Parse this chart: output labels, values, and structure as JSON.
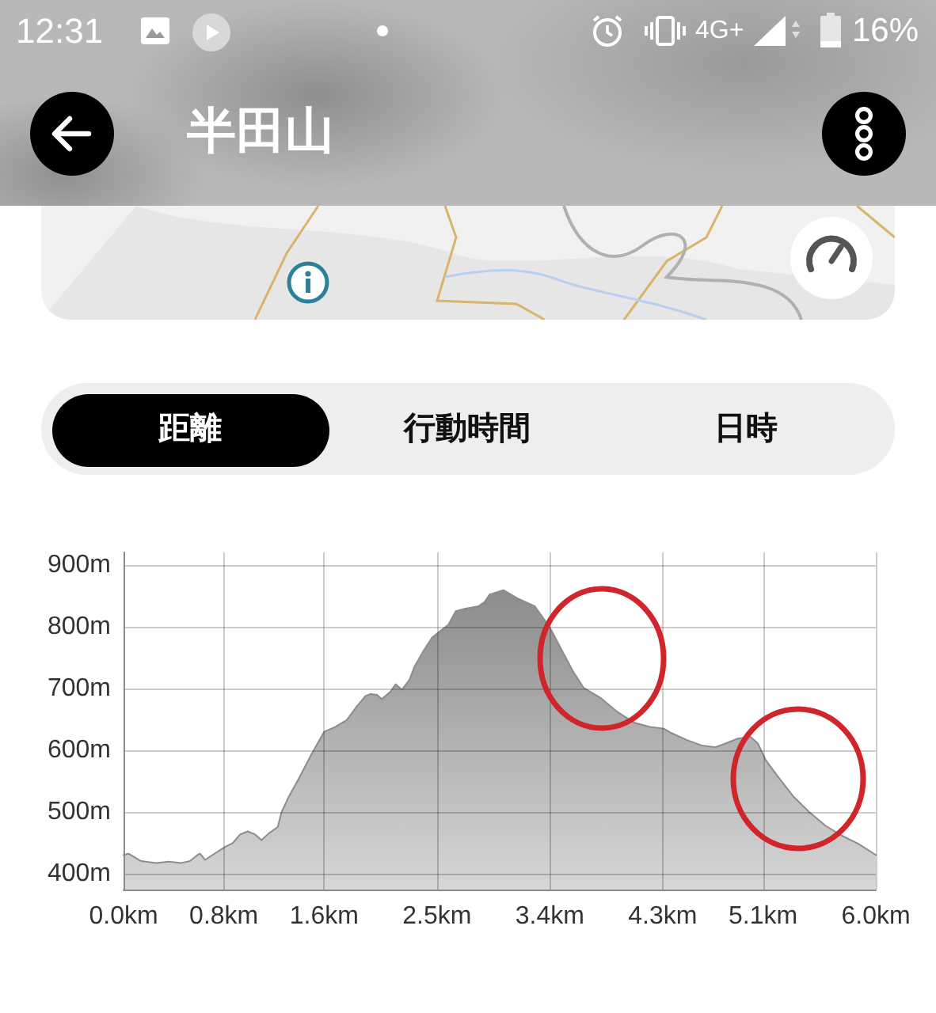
{
  "chart_data": {
    "type": "area",
    "title": "半田山",
    "annotations": [
      "12:31",
      "4G+",
      "16%",
      "距離",
      "行動時間",
      "日時"
    ],
    "x": [
      0.0,
      0.04,
      0.14,
      0.26,
      0.36,
      0.46,
      0.53,
      0.59,
      0.61,
      0.65,
      0.71,
      0.81,
      0.87,
      0.93,
      0.99,
      1.05,
      1.1,
      1.16,
      1.23,
      1.26,
      1.32,
      1.4,
      1.5,
      1.6,
      1.69,
      1.78,
      1.86,
      1.93,
      1.97,
      2.02,
      2.06,
      2.13,
      2.17,
      2.22,
      2.28,
      2.32,
      2.39,
      2.46,
      2.52,
      2.59,
      2.65,
      2.72,
      2.83,
      2.88,
      2.92,
      3.03,
      3.14,
      3.28,
      3.34,
      3.41,
      3.5,
      3.59,
      3.67,
      3.81,
      3.94,
      4.07,
      4.2,
      4.31,
      4.37,
      4.49,
      4.61,
      4.72,
      4.8,
      4.9,
      5.0,
      5.06,
      5.12,
      5.21,
      5.34,
      5.47,
      5.6,
      5.73,
      5.86,
      6.0
    ],
    "values": [
      431,
      433,
      421,
      418,
      420,
      418,
      421,
      431,
      433,
      423,
      431,
      444,
      450,
      464,
      469,
      464,
      455,
      466,
      476,
      500,
      526,
      555,
      594,
      630,
      638,
      649,
      671,
      688,
      691,
      690,
      683,
      695,
      707,
      698,
      714,
      735,
      760,
      782,
      792,
      803,
      825,
      829,
      833,
      840,
      852,
      859,
      846,
      833,
      816,
      795,
      760,
      726,
      701,
      684,
      662,
      645,
      638,
      635,
      628,
      617,
      608,
      605,
      611,
      619,
      622,
      611,
      585,
      560,
      526,
      500,
      478,
      462,
      449,
      431
    ],
    "color": "#8c8c8c",
    "xlim": [
      0,
      6.0
    ],
    "xticks": [
      {
        "value": 0,
        "label": "0.0km"
      },
      {
        "value": 0.8,
        "label": "0.8km"
      },
      {
        "value": 1.6,
        "label": "1.6km"
      },
      {
        "value": 2.5,
        "label": "2.5km"
      },
      {
        "value": 3.4,
        "label": "3.4km"
      },
      {
        "value": 4.3,
        "label": "4.3km"
      },
      {
        "value": 5.1,
        "label": "5.1km"
      },
      {
        "value": 6.0,
        "label": "6.0km"
      }
    ],
    "ylim": [
      375,
      920
    ],
    "yticks": [
      {
        "value": 400,
        "label": "400m"
      },
      {
        "value": 500,
        "label": "500m"
      },
      {
        "value": 600,
        "label": "600m"
      },
      {
        "value": 700,
        "label": "700m"
      },
      {
        "value": 800,
        "label": "800m"
      },
      {
        "value": 900,
        "label": "900m"
      }
    ],
    "grid": true
  }
}
